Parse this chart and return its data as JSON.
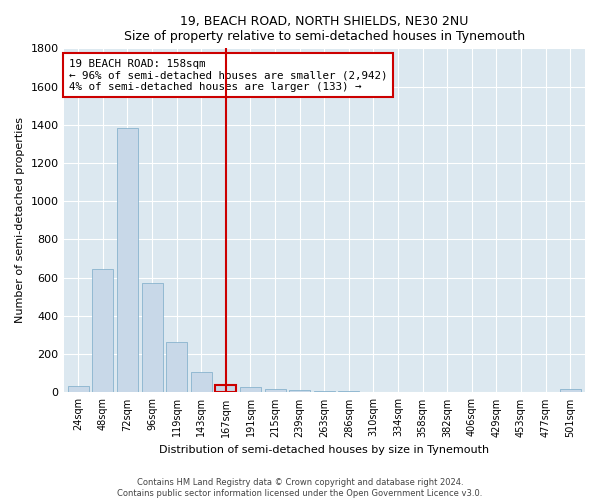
{
  "title1": "19, BEACH ROAD, NORTH SHIELDS, NE30 2NU",
  "title2": "Size of property relative to semi-detached houses in Tynemouth",
  "xlabel": "Distribution of semi-detached houses by size in Tynemouth",
  "ylabel": "Number of semi-detached properties",
  "categories": [
    "24sqm",
    "48sqm",
    "72sqm",
    "96sqm",
    "119sqm",
    "143sqm",
    "167sqm",
    "191sqm",
    "215sqm",
    "239sqm",
    "263sqm",
    "286sqm",
    "310sqm",
    "334sqm",
    "358sqm",
    "382sqm",
    "406sqm",
    "429sqm",
    "453sqm",
    "477sqm",
    "501sqm"
  ],
  "values": [
    35,
    648,
    1385,
    570,
    265,
    105,
    38,
    28,
    20,
    12,
    5,
    5,
    2,
    0,
    0,
    2,
    0,
    0,
    0,
    0,
    18
  ],
  "bar_color": "#c8d8e8",
  "bar_edge_color": "#7aaac8",
  "highlight_bar_index": 6,
  "highlight_bar_edge_color": "#cc0000",
  "vline_x": 6,
  "vline_color": "#cc0000",
  "annotation_title": "19 BEACH ROAD: 158sqm",
  "annotation_line1": "← 96% of semi-detached houses are smaller (2,942)",
  "annotation_line2": "4% of semi-detached houses are larger (133) →",
  "annotation_box_color": "#cc0000",
  "ylim": [
    0,
    1800
  ],
  "yticks": [
    0,
    200,
    400,
    600,
    800,
    1000,
    1200,
    1400,
    1600,
    1800
  ],
  "footnote1": "Contains HM Land Registry data © Crown copyright and database right 2024.",
  "footnote2": "Contains public sector information licensed under the Open Government Licence v3.0.",
  "bg_color": "#ffffff",
  "plot_bg_color": "#dce8f0"
}
